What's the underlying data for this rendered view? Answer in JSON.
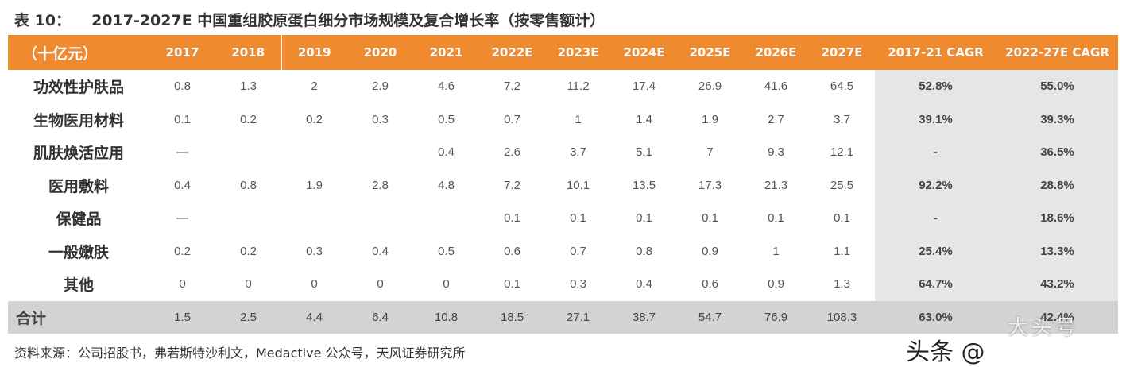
{
  "title": {
    "number": "表 10：",
    "text": "2017-2027E 中国重组胶原蛋白细分市场规模及复合增长率（按零售额计）"
  },
  "table": {
    "headers": [
      "（十亿元）",
      "2017",
      "2018",
      "2019",
      "2020",
      "2021",
      "2022E",
      "2023E",
      "2024E",
      "2025E",
      "2026E",
      "2027E",
      "2017-21 CAGR",
      "2022-27E CAGR"
    ],
    "rows": [
      [
        "功效性护肤品",
        "0.8",
        "1.3",
        "2",
        "2.9",
        "4.6",
        "7.2",
        "11.2",
        "17.4",
        "26.9",
        "41.6",
        "64.5",
        "52.8%",
        "55.0%"
      ],
      [
        "生物医用材料",
        "0.1",
        "0.2",
        "0.2",
        "0.3",
        "0.5",
        "0.7",
        "1",
        "1.4",
        "1.9",
        "2.7",
        "3.7",
        "39.1%",
        "39.3%"
      ],
      [
        "肌肤焕活应用",
        "—",
        "",
        "",
        "",
        "0.4",
        "2.6",
        "3.7",
        "5.1",
        "7",
        "9.3",
        "12.1",
        "-",
        "36.5%"
      ],
      [
        "医用敷料",
        "0.4",
        "0.8",
        "1.9",
        "2.8",
        "4.8",
        "7.2",
        "10.1",
        "13.5",
        "17.3",
        "21.3",
        "25.5",
        "92.2%",
        "28.8%"
      ],
      [
        "保健品",
        "—",
        "",
        "",
        "",
        "",
        "0.1",
        "0.1",
        "0.1",
        "0.1",
        "0.1",
        "0.1",
        "-",
        "18.6%"
      ],
      [
        "一般嫩肤",
        "0.2",
        "0.2",
        "0.3",
        "0.4",
        "0.5",
        "0.6",
        "0.7",
        "0.8",
        "0.9",
        "1",
        "1.1",
        "25.4%",
        "13.3%"
      ],
      [
        "其他",
        "0",
        "0",
        "0",
        "0",
        "0",
        "0.1",
        "0.3",
        "0.4",
        "0.6",
        "0.9",
        "1.3",
        "64.7%",
        "43.2%"
      ]
    ],
    "total": [
      "合计",
      "1.5",
      "2.5",
      "4.4",
      "6.4",
      "10.8",
      "18.5",
      "27.1",
      "38.7",
      "54.7",
      "76.9",
      "108.3",
      "63.0%",
      "42.4%"
    ]
  },
  "source": "资料来源：公司招股书，弗若斯特沙利文，Medactive 公众号，天风证券研究所",
  "watermark": "头条 @",
  "stamp": "大头号",
  "colors": {
    "header_bg": "#f08a2f",
    "cagr_bg": "#e6e6e8",
    "total_bg": "#d3d3d6"
  }
}
